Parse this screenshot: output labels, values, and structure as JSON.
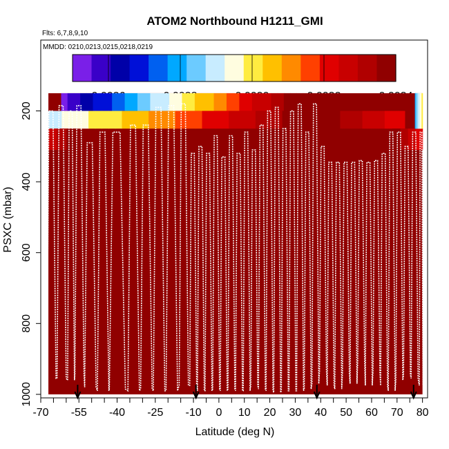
{
  "chart_data": {
    "type": "heatmap",
    "title": "ATOM2 Northbound H1211_GMI",
    "flights_label": "Flts: 6,7,8,9,10",
    "dates_label": "MMDD: 0210,0213,0215,0218,0219",
    "xlabel": "Latitude (deg N)",
    "ylabel": "PSXC (mbar)",
    "xlim": [
      -70,
      82
    ],
    "ylim": [
      1010,
      0
    ],
    "x_ticks": [
      -70,
      -55,
      -40,
      -25,
      -10,
      0,
      10,
      20,
      30,
      40,
      50,
      60,
      70,
      80
    ],
    "x_tick_labels": [
      "-70",
      "-55",
      "-40",
      "-25",
      "-10",
      "0",
      "10",
      "20",
      "30",
      "40",
      "50",
      "60",
      "70",
      "80"
    ],
    "y_ticks": [
      200,
      400,
      600,
      800,
      1000
    ],
    "y_tick_labels": [
      "200",
      "400",
      "600",
      "800",
      "1000"
    ],
    "colorbar": {
      "range": [
        0.0025,
        0.0034
      ],
      "tick_values": [
        0.0026,
        0.0028,
        0.003,
        0.0032,
        0.0034
      ],
      "tick_labels": [
        "0.0026",
        "0.0028",
        "0.0030",
        "0.0032",
        "0.0034"
      ],
      "colors": [
        "#7a1fe8",
        "#3a00c8",
        "#0000a8",
        "#0010d8",
        "#0060f0",
        "#00a8ff",
        "#6ccbff",
        "#c8ecff",
        "#fffde0",
        "#ffec40",
        "#ffc000",
        "#ff8a00",
        "#ff4000",
        "#e00000",
        "#c80000",
        "#b00000",
        "#900000"
      ]
    },
    "background_value": 0.00335,
    "background_lat_range": [
      -67,
      80
    ],
    "background_p_range": [
      150,
      1000
    ],
    "bands": [
      {
        "lat": [
          -62,
          38
        ],
        "p": [
          150,
          200
        ],
        "from": 0.00255,
        "to": 0.00345
      },
      {
        "lat": [
          -67,
          38
        ],
        "p": [
          200,
          250
        ],
        "from": 0.0029,
        "to": 0.0034
      },
      {
        "lat": [
          38,
          73
        ],
        "p": [
          200,
          250
        ],
        "from": 0.0034,
        "to": 0.0032
      },
      {
        "lat": [
          -67,
          -56
        ],
        "p": [
          250,
          310
        ],
        "from": 0.00325,
        "to": 0.0034
      },
      {
        "lat": [
          68,
          80
        ],
        "p": [
          250,
          310
        ],
        "from": 0.0034,
        "to": 0.0032
      },
      {
        "lat": [
          77,
          80
        ],
        "p": [
          150,
          250
        ],
        "from": 0.0028,
        "to": 0.003
      }
    ],
    "profile_lats": [
      -67,
      -63,
      -59,
      -56,
      -52,
      -47,
      -42,
      -35,
      -30,
      -25,
      -20,
      -15,
      -11,
      -8,
      -5,
      -2,
      1,
      4,
      7,
      10,
      13,
      16,
      19,
      22,
      25,
      28,
      31,
      34,
      37,
      40,
      43,
      46,
      49,
      52,
      55,
      58,
      61,
      64,
      67,
      70,
      73,
      76,
      79
    ],
    "profile_tops": [
      200,
      185,
      200,
      185,
      290,
      260,
      260,
      240,
      240,
      190,
      185,
      180,
      320,
      300,
      320,
      270,
      330,
      270,
      320,
      260,
      310,
      240,
      200,
      190,
      250,
      200,
      180,
      260,
      180,
      300,
      345,
      345,
      345,
      345,
      340,
      345,
      340,
      320,
      260,
      260,
      300,
      260,
      260
    ],
    "profile_bottoms": [
      955,
      955,
      960,
      945,
      980,
      990,
      985,
      990,
      985,
      990,
      990,
      975,
      975,
      990,
      990,
      985,
      990,
      985,
      990,
      990,
      975,
      985,
      990,
      995,
      990,
      990,
      990,
      985,
      970,
      935,
      975,
      985,
      940,
      970,
      905,
      975,
      935,
      975,
      990,
      960,
      945,
      955,
      975
    ],
    "arrows_lat": [
      -55.5,
      -9,
      38.5,
      76.5
    ]
  }
}
